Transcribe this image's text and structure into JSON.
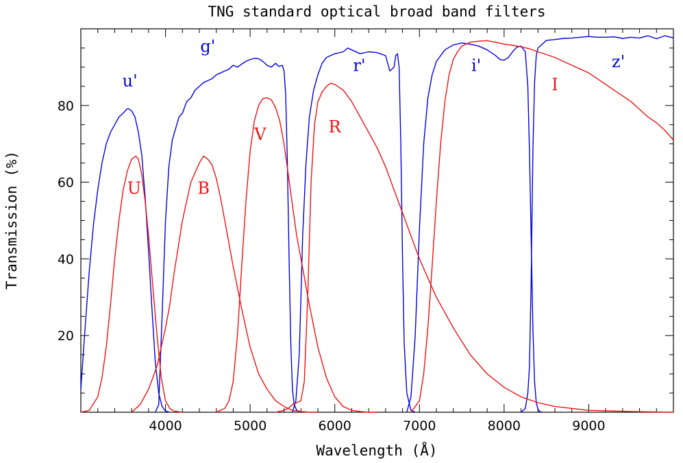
{
  "chart_data": {
    "type": "line",
    "title": "TNG standard optical broad band filters",
    "xlabel": "Wavelength (Å)",
    "ylabel": "Transmission (%)",
    "xlim": [
      3000,
      10000
    ],
    "ylim": [
      0,
      100
    ],
    "xticks": [
      4000,
      5000,
      6000,
      7000,
      8000,
      9000
    ],
    "yticks": [
      20,
      40,
      60,
      80
    ],
    "grid": false,
    "legend": "none",
    "colors": {
      "sdss": "#0000dd",
      "johnson": "#ee1111",
      "axes": "#000000"
    },
    "series": [
      {
        "name": "u'",
        "color": "#0000dd",
        "label_at": [
          3580,
          85
        ],
        "x": [
          3000,
          3050,
          3100,
          3150,
          3200,
          3250,
          3300,
          3350,
          3400,
          3450,
          3500,
          3540,
          3560,
          3600,
          3640,
          3680,
          3720,
          3760,
          3800,
          3840,
          3880,
          3920,
          3960,
          4000,
          4050
        ],
        "y": [
          6,
          22,
          37,
          49,
          58,
          65,
          70,
          73,
          75,
          77,
          78,
          79,
          79.2,
          78.6,
          77,
          73,
          67,
          56,
          42,
          27,
          13,
          5,
          1.5,
          0.3,
          0
        ]
      },
      {
        "name": "g'",
        "color": "#0000dd",
        "label_at": [
          4500,
          94
        ],
        "x": [
          3880,
          3920,
          3960,
          4000,
          4040,
          4080,
          4120,
          4160,
          4200,
          4250,
          4300,
          4350,
          4400,
          4450,
          4500,
          4550,
          4600,
          4650,
          4700,
          4750,
          4800,
          4850,
          4900,
          4950,
          5000,
          5050,
          5100,
          5150,
          5200,
          5250,
          5300,
          5340,
          5380,
          5400,
          5420,
          5440,
          5460,
          5480,
          5500,
          5520,
          5550,
          5600
        ],
        "y": [
          0,
          2,
          25,
          50,
          64,
          71,
          74,
          77,
          78,
          81,
          82,
          84,
          85,
          86,
          86.5,
          87,
          88,
          88.5,
          89,
          89.5,
          90.5,
          90,
          90.8,
          91.5,
          92,
          92.3,
          92.2,
          91.5,
          90.5,
          90,
          91,
          90.2,
          90.5,
          89,
          83,
          65,
          40,
          18,
          6,
          2,
          0.5,
          0
        ]
      },
      {
        "name": "r'",
        "color": "#0000dd",
        "label_at": [
          6290,
          89
        ],
        "x": [
          5500,
          5540,
          5580,
          5600,
          5620,
          5660,
          5700,
          5750,
          5800,
          5850,
          5900,
          6000,
          6100,
          6150,
          6200,
          6300,
          6400,
          6500,
          6600,
          6650,
          6700,
          6720,
          6740,
          6760,
          6780,
          6800,
          6820,
          6850,
          6900,
          6950
        ],
        "y": [
          0,
          3,
          15,
          30,
          46,
          65,
          77,
          84,
          88,
          91,
          92.5,
          93.5,
          94,
          95,
          94.5,
          93.5,
          94,
          93.8,
          93,
          89,
          90,
          93,
          93.5,
          90,
          70,
          40,
          18,
          5,
          0.5,
          0
        ]
      },
      {
        "name": "i'",
        "color": "#0000dd",
        "label_at": [
          7670,
          89
        ],
        "x": [
          6850,
          6900,
          6950,
          7000,
          7050,
          7100,
          7150,
          7200,
          7300,
          7400,
          7500,
          7600,
          7700,
          7800,
          7900,
          7950,
          8000,
          8050,
          8100,
          8150,
          8200,
          8250,
          8280,
          8300,
          8320,
          8340,
          8360,
          8380,
          8400,
          8420,
          8450
        ],
        "y": [
          0,
          4,
          20,
          48,
          70,
          82,
          88,
          91.5,
          94.5,
          95.8,
          96.3,
          96,
          95.5,
          94.5,
          93,
          92,
          91.8,
          92.5,
          94,
          95.2,
          95.5,
          94,
          85,
          68,
          45,
          22,
          8,
          2.5,
          0.8,
          0.2,
          0
        ]
      },
      {
        "name": "z'",
        "color": "#0000dd",
        "label_at": [
          9350,
          90
        ],
        "x": [
          8200,
          8250,
          8280,
          8300,
          8320,
          8340,
          8360,
          8380,
          8400,
          8450,
          8500,
          8600,
          8700,
          8800,
          8900,
          9000,
          9100,
          9200,
          9300,
          9400,
          9500,
          9600,
          9700,
          9800,
          9900,
          10000
        ],
        "y": [
          0,
          1,
          5,
          12,
          35,
          68,
          86,
          93,
          95,
          96,
          97,
          97.2,
          97.5,
          97.6,
          97.8,
          98,
          97.8,
          97.8,
          97.9,
          97.5,
          97.8,
          97.6,
          98.2,
          97.4,
          98.2,
          97.6
        ]
      },
      {
        "name": "U",
        "color": "#ee1111",
        "label_at": [
          3630,
          57
        ],
        "x": [
          3000,
          3100,
          3200,
          3250,
          3300,
          3350,
          3400,
          3450,
          3500,
          3550,
          3600,
          3650,
          3680,
          3720,
          3760,
          3800,
          3850,
          3900,
          3950,
          4000,
          4050,
          4100,
          4200
        ],
        "y": [
          0,
          0.5,
          4,
          9,
          17,
          28,
          40,
          50,
          58,
          63,
          66,
          66.8,
          66,
          62,
          55,
          46,
          33,
          20,
          9,
          3,
          1,
          0.3,
          0
        ]
      },
      {
        "name": "B",
        "color": "#ee1111",
        "label_at": [
          4450,
          57
        ],
        "x": [
          3600,
          3700,
          3800,
          3900,
          3950,
          4000,
          4050,
          4100,
          4200,
          4300,
          4400,
          4450,
          4500,
          4550,
          4600,
          4650,
          4700,
          4800,
          4900,
          5000,
          5100,
          5200,
          5300,
          5400,
          5500,
          5600,
          5700,
          5800
        ],
        "y": [
          0,
          2,
          6,
          12,
          17,
          22,
          28,
          36,
          50,
          60,
          65,
          66.8,
          66,
          64.5,
          61,
          56,
          50,
          38,
          27,
          17,
          10,
          6,
          3,
          1.5,
          0.5,
          0.2,
          0,
          0
        ]
      },
      {
        "name": "V",
        "color": "#ee1111",
        "label_at": [
          5120,
          71
        ],
        "x": [
          4600,
          4700,
          4750,
          4800,
          4850,
          4900,
          4950,
          5000,
          5050,
          5100,
          5150,
          5200,
          5250,
          5300,
          5350,
          5400,
          5450,
          5500,
          5550,
          5600,
          5650,
          5700,
          5800,
          5900,
          6000,
          6100,
          6200,
          6300,
          6400,
          6500
        ],
        "y": [
          0,
          1,
          3,
          8,
          20,
          38,
          55,
          68,
          76,
          80,
          81.8,
          82,
          81.5,
          79.5,
          76,
          70,
          62,
          54,
          46,
          40,
          34,
          28,
          17,
          9,
          4,
          1.5,
          0.5,
          0.2,
          0,
          0
        ]
      },
      {
        "name": "R",
        "color": "#ee1111",
        "label_at": [
          6000,
          73
        ],
        "x": [
          5300,
          5400,
          5450,
          5500,
          5550,
          5600,
          5640,
          5680,
          5720,
          5760,
          5800,
          5850,
          5900,
          5950,
          6000,
          6100,
          6200,
          6300,
          6400,
          6500,
          6600,
          6700,
          6800,
          6900,
          7000,
          7200,
          7400,
          7600,
          7800,
          8000,
          8200,
          8400,
          8600,
          8800,
          9000,
          9500,
          10000
        ],
        "y": [
          0,
          0.5,
          1,
          2,
          2.5,
          3,
          8,
          30,
          60,
          75,
          81,
          83.5,
          85,
          85.8,
          85.5,
          84,
          81,
          77,
          73,
          69,
          64,
          58,
          52,
          46,
          40,
          30,
          22,
          15,
          10,
          6.5,
          4,
          2.5,
          1.5,
          1,
          0.5,
          0.2,
          0
        ]
      },
      {
        "name": "I",
        "color": "#ee1111",
        "label_at": [
          8600,
          84
        ],
        "x": [
          6900,
          7000,
          7050,
          7100,
          7150,
          7200,
          7250,
          7300,
          7350,
          7400,
          7450,
          7500,
          7600,
          7700,
          7800,
          7900,
          8000,
          8100,
          8200,
          8300,
          8400,
          8500,
          8600,
          8700,
          8800,
          8900,
          9000,
          9100,
          9200,
          9300,
          9400,
          9500,
          9600,
          9700,
          9800,
          9900,
          10000
        ],
        "y": [
          0,
          3,
          10,
          22,
          38,
          55,
          70,
          81,
          88,
          92,
          94,
          95.5,
          96.5,
          96.8,
          96.9,
          96.5,
          96,
          95.7,
          95.3,
          94.8,
          94,
          93.3,
          92.5,
          91.5,
          90.5,
          89.5,
          88.5,
          87,
          85.5,
          84,
          82.5,
          81,
          79,
          77,
          75.5,
          73.5,
          71
        ]
      }
    ]
  }
}
